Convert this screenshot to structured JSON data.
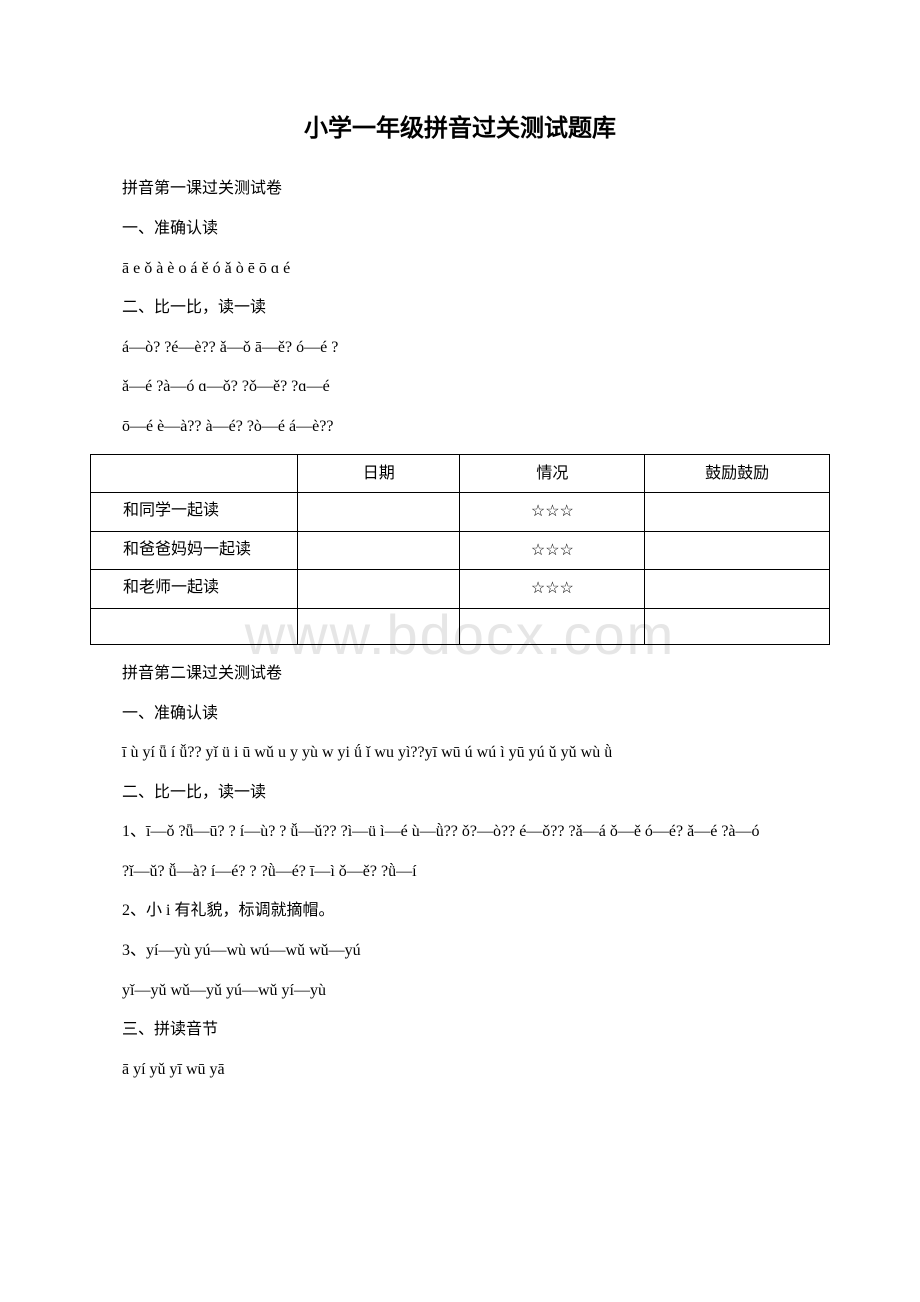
{
  "watermark": "www.bdocx.com",
  "title": "小学一年级拼音过关测试题库",
  "lines_top": [
    "拼音第一课过关测试卷",
    "一、准确认读",
    "ā  e  ǒ  à  è  o  á  ě  ó  ǎ  ò  ē  ō  ɑ  é",
    "二、比一比，读一读",
    "á—ò? ?é—è?? ǎ—ǒ   ā—ě?  ó—é ?",
    "ǎ—é  ?à—ó ɑ—ǒ? ?ǒ—ě? ?ɑ—é",
    "ō—é  è—à?? à—é? ?ò—é  á—è??"
  ],
  "table": {
    "headers": [
      "",
      "日期",
      "情况",
      "鼓励鼓励"
    ],
    "rows": [
      {
        "label": "和同学一起读",
        "date": "",
        "status": "☆☆☆",
        "encourage": ""
      },
      {
        "label": "和爸爸妈妈一起读",
        "date": "",
        "status": "☆☆☆",
        "encourage": ""
      },
      {
        "label": "和老师一起读",
        "date": "",
        "status": "☆☆☆",
        "encourage": ""
      },
      {
        "label": "",
        "date": "",
        "status": "",
        "encourage": ""
      }
    ]
  },
  "lines_bottom": [
    "拼音第二课过关测试卷",
    "一、准确认读",
    "ī  ù  yí  ǖ  í  ǚ?? yǐ  ü  i  ū  wǔ  u  y  yù  w  yi  ǘ  ǐ wu yì??yī wū ú wú ì  yū  yú ǔ  yǔ wù ǜ",
    "二、比一比，读一读",
    "1、ī—ǒ  ?ǖ—ū? ? í—ù? ? ǚ—ǔ?? ?ì—ü ì—é   ù—ǜ?? ǒ?—ò??  é—ǒ?? ?ǎ—á ǒ—ě  ó—é?  ǎ—é ?à—ó",
    "?ǐ—ǔ?  ǚ—à?  í—é? ? ?ǜ—é? ī—ì ǒ—ě? ?ǜ—í",
    "2、小 i 有礼貌，标调就摘帽。",
    "3、yí—yù  yú—wù  wú—wǔ   wǔ—yú",
    "yǐ—yǔ  wǔ—yǔ yú—wǔ   yí—yù",
    "三、拼读音节",
    "ā yí yǔ yī wū yā"
  ],
  "colors": {
    "text": "#000000",
    "bg": "#ffffff",
    "watermark": "#e6e6e6",
    "border": "#000000"
  },
  "fontsize": {
    "title": 24,
    "body": 16,
    "watermark": 56
  }
}
